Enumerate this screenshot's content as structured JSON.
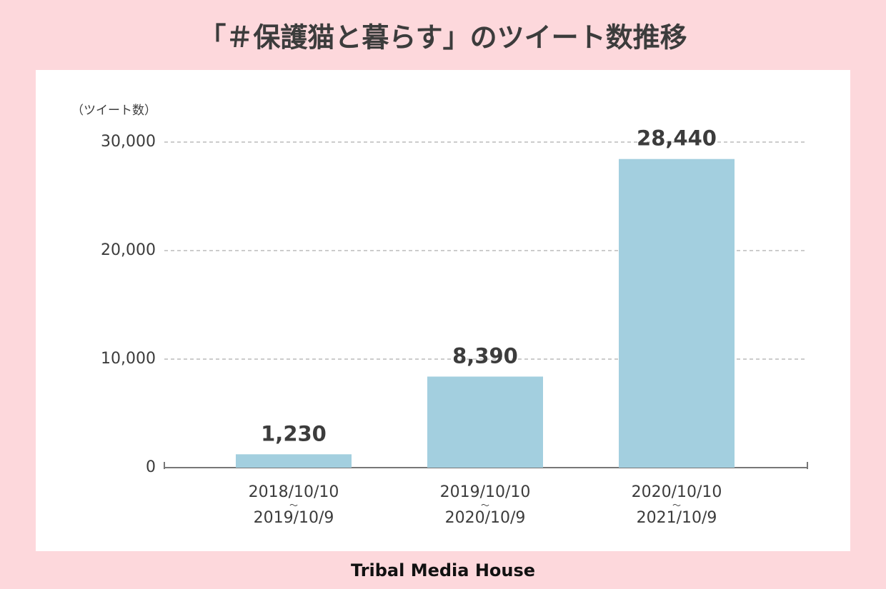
{
  "chart_data": {
    "type": "bar",
    "title": "「＃保護猫と暮らす」のツイート数推移",
    "y_label": "（ツイート数）",
    "categories": [
      "2018/10/10〜2019/10/9",
      "2019/10/10〜2020/10/9",
      "2020/10/10〜2021/10/9"
    ],
    "values": [
      1230,
      8390,
      28440
    ],
    "value_labels": [
      "1,230",
      "8,390",
      "28,440"
    ],
    "color": "#a3cfdf",
    "ylim": [
      0,
      30000
    ],
    "yticks": [
      0,
      {
        "value": 10000,
        "label": "10,000"
      },
      {
        "value": 20000,
        "label": "20,000"
      },
      {
        "value": 30000,
        "label": "30,000"
      }
    ],
    "grid": true,
    "source": "Tribal Media House"
  }
}
